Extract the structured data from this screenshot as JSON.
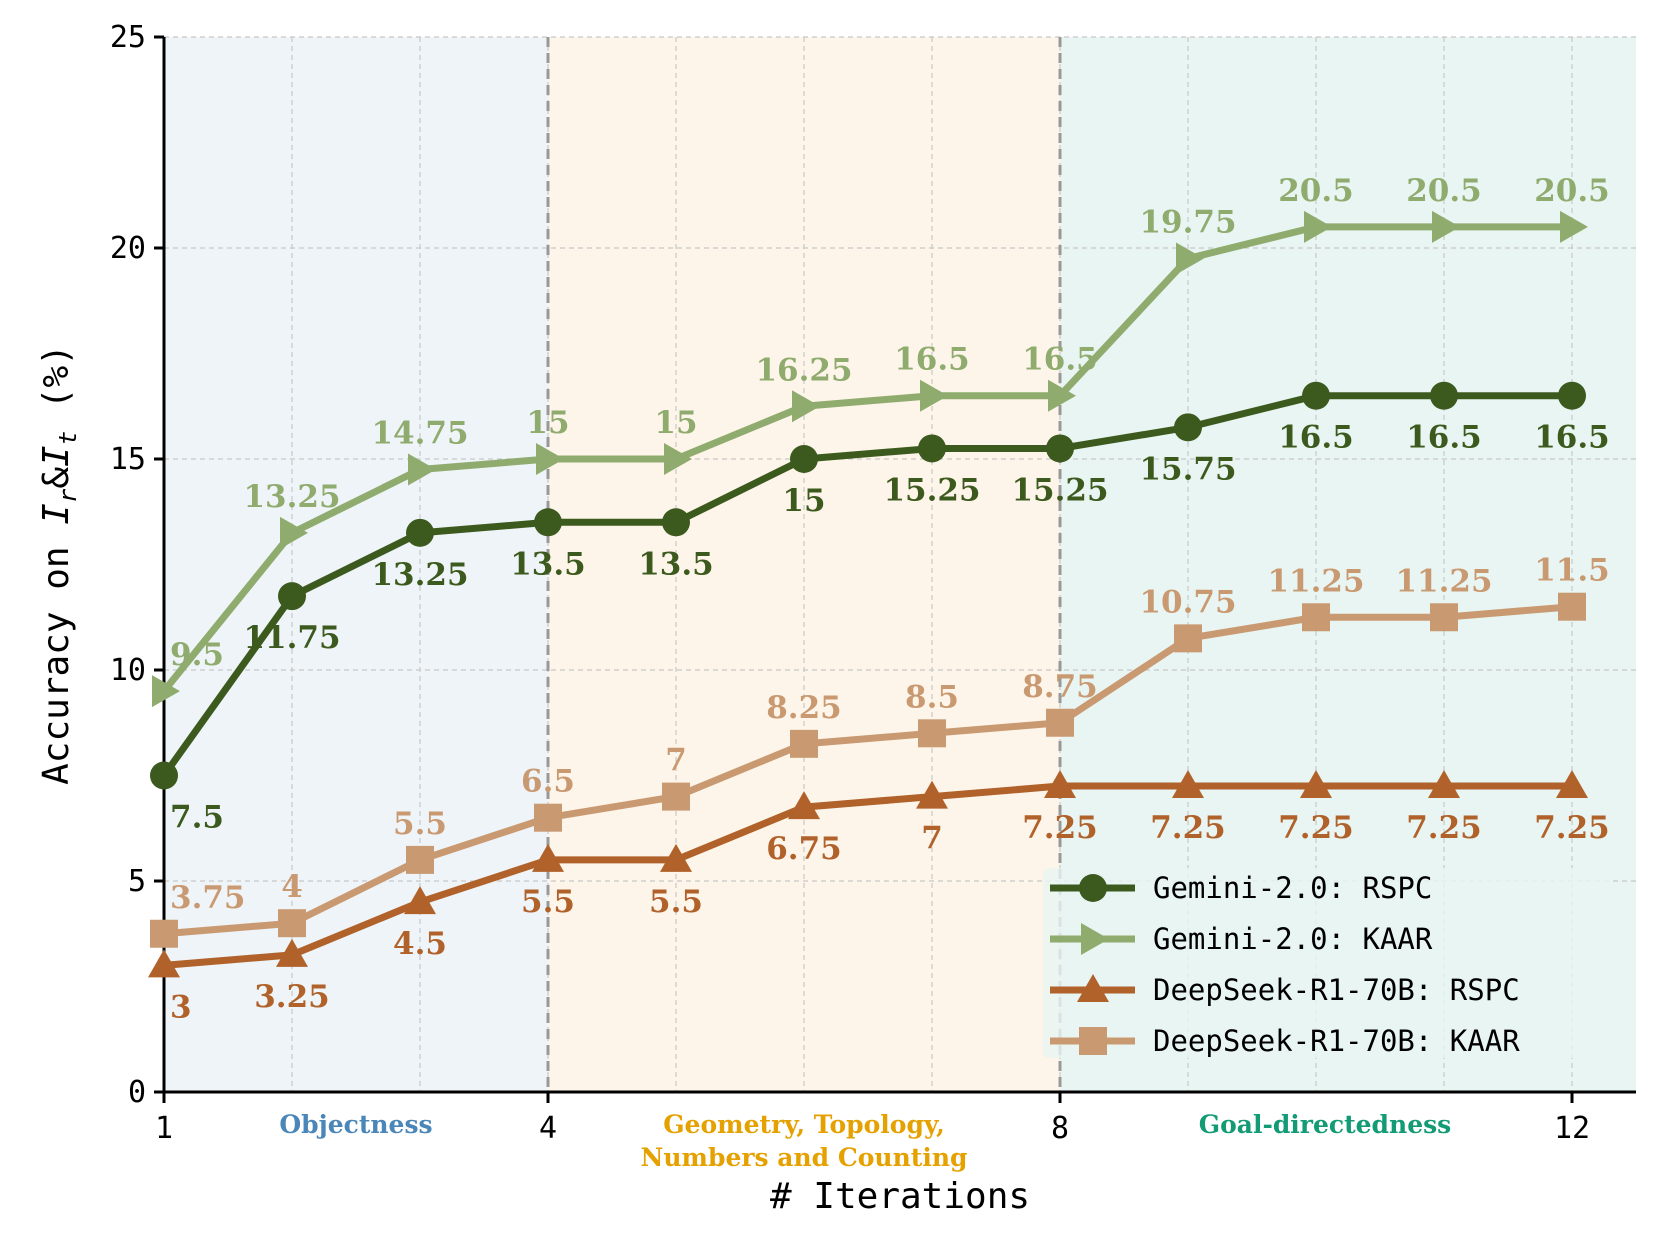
{
  "chart_data": {
    "type": "line",
    "title": "",
    "xlabel": "# Iterations",
    "ylabel_parts": [
      "Accuracy on ",
      "I",
      "r",
      "&",
      "I",
      "t",
      " (%)"
    ],
    "ylim": [
      0,
      25
    ],
    "xlim": [
      1,
      12.5
    ],
    "x": [
      1,
      2,
      3,
      4,
      5,
      6,
      7,
      8,
      9,
      10,
      11,
      12
    ],
    "xticks": [
      1,
      4,
      8,
      12
    ],
    "xtick_labels": [
      "1",
      "4",
      "8",
      "12"
    ],
    "yticks": [
      0,
      5,
      10,
      15,
      20,
      25
    ],
    "ytick_labels": [
      "0",
      "5",
      "10",
      "15",
      "20",
      "25"
    ],
    "grid": true,
    "legend_position": "lower-right",
    "regions": [
      {
        "label": [
          "Objectness"
        ],
        "from": 1,
        "to": 4,
        "color": "#eef4f8",
        "text_color": "#4a86b8"
      },
      {
        "label": [
          "Geometry, Topology,",
          "Numbers and Counting"
        ],
        "from": 4,
        "to": 8,
        "color": "#fdf5e9",
        "text_color": "#e5a100"
      },
      {
        "label": [
          "Goal-directedness"
        ],
        "from": 8,
        "to": 12.5,
        "color": "#e9f5f2",
        "text_color": "#129b74"
      }
    ],
    "series": [
      {
        "name": "Gemini-2.0: RSPC",
        "marker": "circle",
        "color": "#3d5a1e",
        "label_pos": "below",
        "values": [
          7.5,
          11.75,
          13.25,
          13.5,
          13.5,
          15,
          15.25,
          15.25,
          15.75,
          16.5,
          16.5,
          16.5
        ]
      },
      {
        "name": "Gemini-2.0: KAAR",
        "marker": "triangle-right",
        "color": "#8fab6e",
        "label_pos": "above",
        "values": [
          9.5,
          13.25,
          14.75,
          15,
          15,
          16.25,
          16.5,
          16.5,
          19.75,
          20.5,
          20.5,
          20.5
        ]
      },
      {
        "name": "DeepSeek-R1-70B: RSPC",
        "marker": "triangle-up",
        "color": "#b0622a",
        "label_pos": "below",
        "values": [
          3,
          3.25,
          4.5,
          5.5,
          5.5,
          6.75,
          7,
          7.25,
          7.25,
          7.25,
          7.25,
          7.25
        ]
      },
      {
        "name": "DeepSeek-R1-70B: KAAR",
        "marker": "square",
        "color": "#c99a72",
        "label_pos": "above",
        "values": [
          3.75,
          4,
          5.5,
          6.5,
          7,
          8.25,
          8.5,
          8.75,
          10.75,
          11.25,
          11.25,
          11.5
        ]
      }
    ]
  }
}
